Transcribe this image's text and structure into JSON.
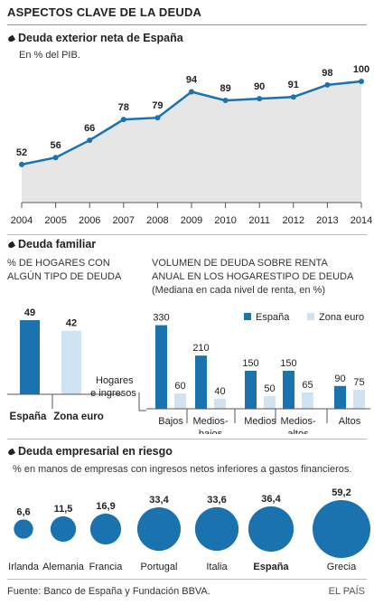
{
  "title": "ASPECTOS CLAVE DE LA DEUDA",
  "colors": {
    "dark_blue": "#1a72ae",
    "light_blue": "#cfe3f2",
    "line": "#1a72ae",
    "area": "#e6e6e6"
  },
  "source": "Fuente: Banco de España y Fundación BBVA.",
  "brand": "EL PAÍS",
  "section1": {
    "title": "Deuda exterior neta de España",
    "subtitle": "En % del PIB."
  },
  "section2": {
    "title": "Deuda familiar",
    "left_caption_1": "% DE HOGARES CON",
    "left_caption_2": "ALGÚN TIPO DE DEUDA",
    "right_caption_1": "VOLUMEN DE DEUDA SOBRE RENTA",
    "right_caption_2": "ANUAL EN LOS HOGARESTIPO DE DEUDA",
    "right_caption_3": "(Mediana en cada nivel de renta, en %)",
    "income_label_1": "Hogares",
    "income_label_2": "de ingresos"
  },
  "section3": {
    "title": "Deuda empresarial en riesgo",
    "subtitle": "%  en manos de empresas con ingresos netos inferiores a gastos financieros."
  },
  "chart_data": [
    {
      "type": "area",
      "x": [
        "2004",
        "2005",
        "2006",
        "2007",
        "2008",
        "2009",
        "2010",
        "2011",
        "2012",
        "2013",
        "2014"
      ],
      "values": [
        52,
        56,
        66,
        78,
        79,
        94,
        89,
        90,
        91,
        98,
        100
      ],
      "ylim": [
        0,
        110
      ]
    },
    {
      "type": "bar",
      "categories": [
        "España",
        "Zona euro"
      ],
      "values": [
        49,
        42
      ],
      "ylim": [
        0,
        55
      ]
    },
    {
      "type": "bar",
      "categories": [
        "Bajos",
        "Medios-bajos",
        "Medios",
        "Medios-altos",
        "Altos"
      ],
      "category_lines": [
        [
          "Bajos"
        ],
        [
          "Medios-",
          "bajos"
        ],
        [
          "Medios"
        ],
        [
          "Medios-",
          "altos"
        ],
        [
          "Altos"
        ]
      ],
      "series": [
        {
          "name": "España",
          "values": [
            330,
            210,
            150,
            150,
            90
          ]
        },
        {
          "name": "Zona euro",
          "values": [
            60,
            40,
            50,
            65,
            75
          ]
        }
      ],
      "legend": "top-right",
      "ylim": [
        0,
        350
      ]
    },
    {
      "type": "scatter",
      "categories": [
        "Irlanda",
        "Alemania",
        "Francia",
        "Portugal",
        "Italia",
        "España",
        "Grecia"
      ],
      "values": [
        6.6,
        11.5,
        16.9,
        33.4,
        33.6,
        36.4,
        59.2
      ],
      "labels": [
        "6,6",
        "11,5",
        "16,9",
        "33,4",
        "33,6",
        "36,4",
        "59,2"
      ],
      "highlight": "España"
    }
  ]
}
